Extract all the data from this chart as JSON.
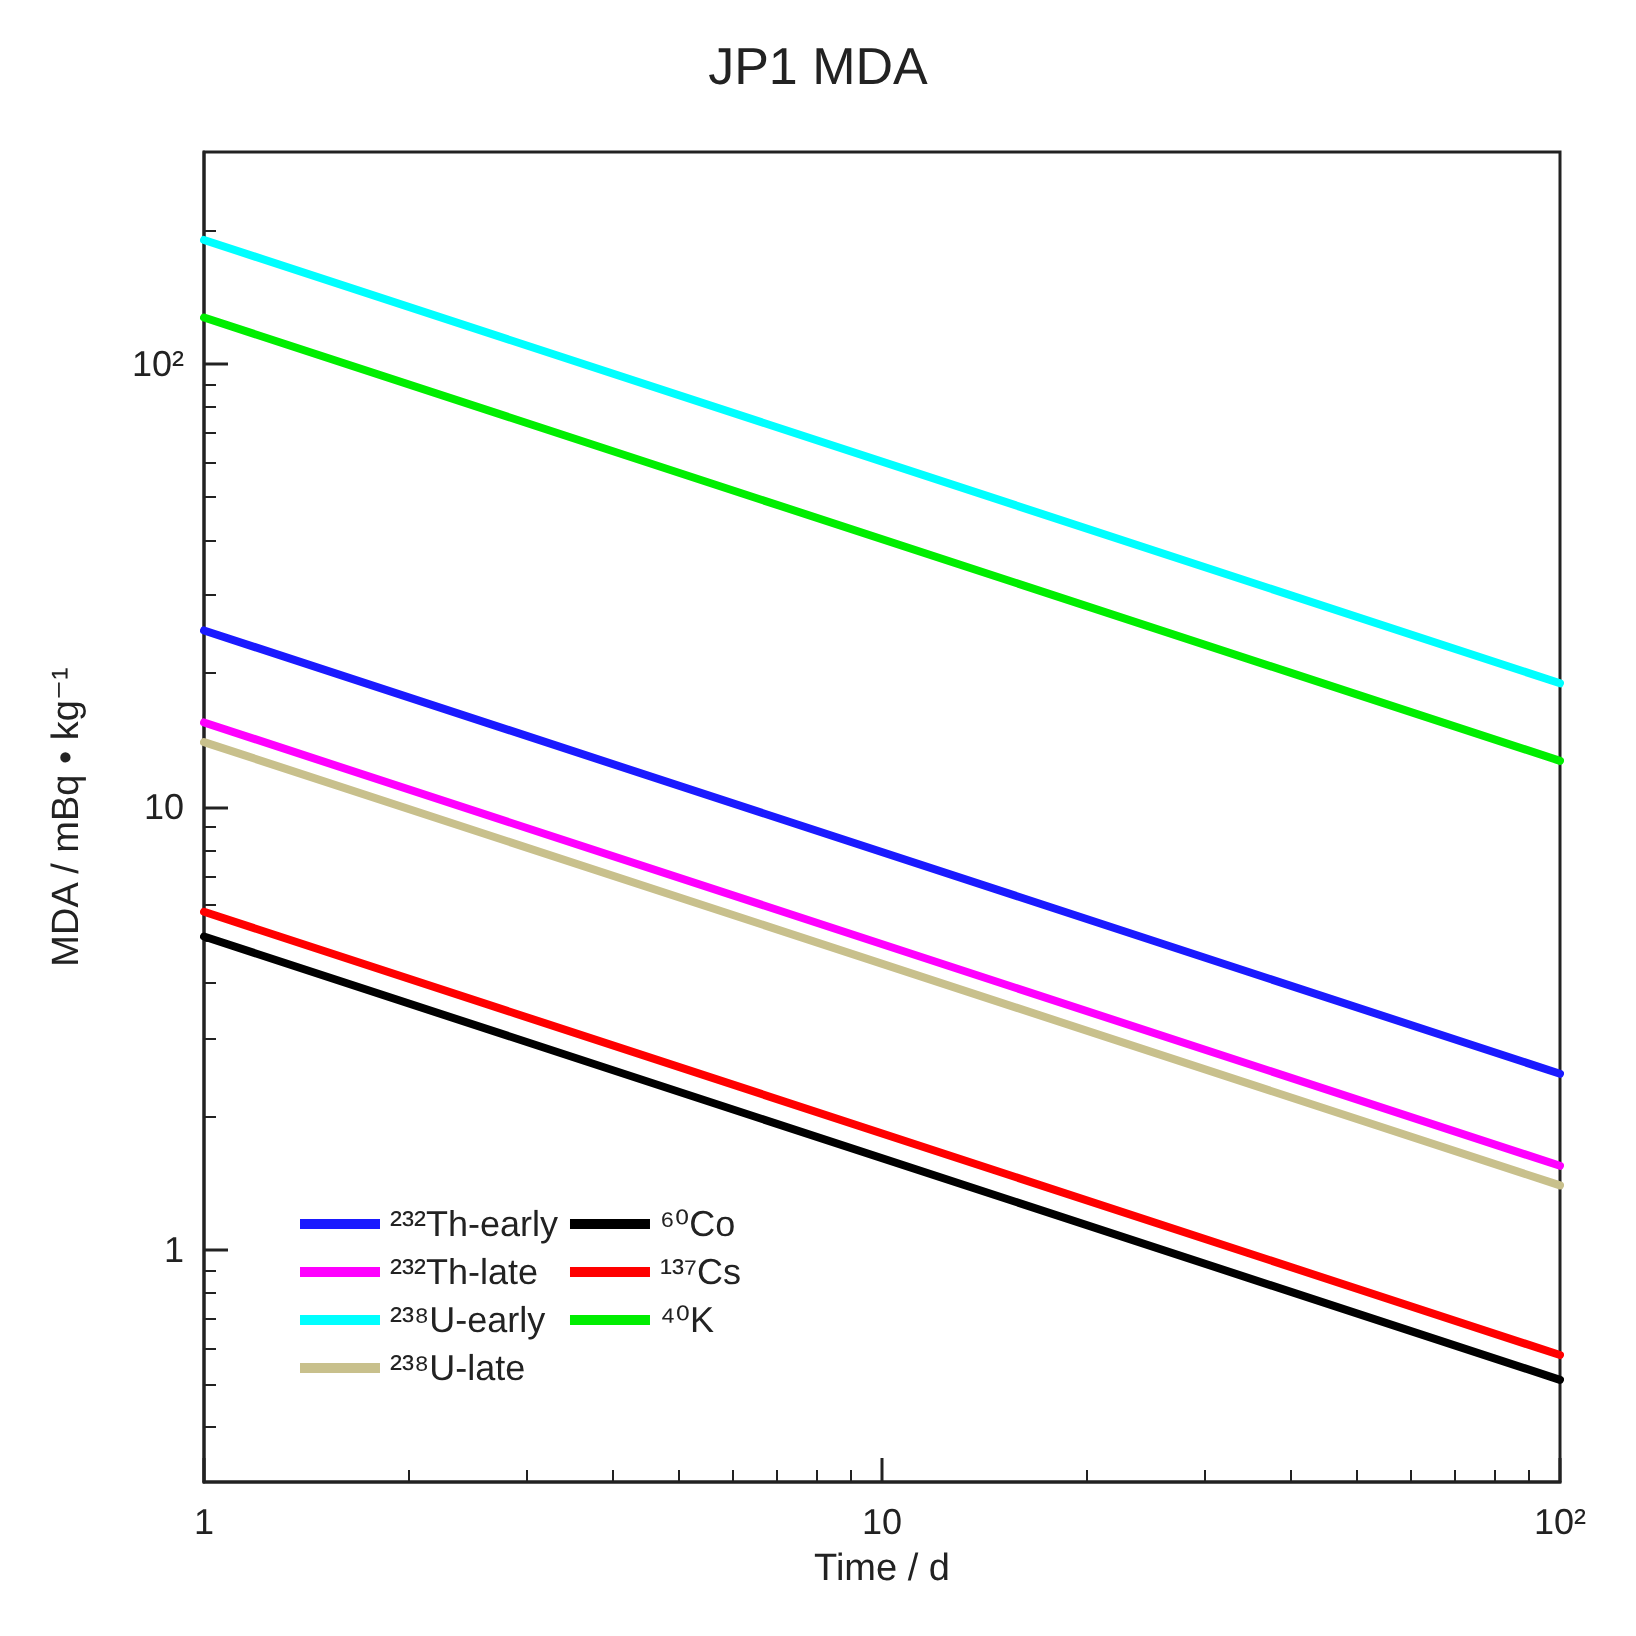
{
  "chart_data": {
    "type": "line",
    "title": "JP1 MDA",
    "xlabel": "Time / d",
    "ylabel": "MDA / mBq • kg⁻¹",
    "x": [
      1,
      100
    ],
    "series": [
      {
        "name": "²³²Th-early",
        "color": "#1a1aff",
        "values": [
          25,
          2.5
        ]
      },
      {
        "name": "²³²Th-late",
        "color": "#ff00ff",
        "values": [
          15.5,
          1.55
        ]
      },
      {
        "name": "²³⁸U-early",
        "color": "#00ffff",
        "values": [
          190,
          19
        ]
      },
      {
        "name": "²³⁸U-late",
        "color": "#c8c08c",
        "values": [
          14,
          1.4
        ]
      },
      {
        "name": "⁶⁰Co",
        "color": "#000000",
        "values": [
          5.1,
          0.51
        ]
      },
      {
        "name": "¹³⁷Cs",
        "color": "#ff0000",
        "values": [
          5.8,
          0.58
        ]
      },
      {
        "name": "⁴⁰K",
        "color": "#00ee00",
        "values": [
          127,
          12.7
        ]
      }
    ],
    "log": "xy",
    "xlim": [
      1,
      100
    ],
    "ylim": [
      0.3,
      300
    ],
    "xticks": [
      1,
      10,
      {
        "value": 100,
        "label": "10²"
      }
    ],
    "yticks": [
      1,
      10,
      {
        "value": 100,
        "label": "10²"
      }
    ],
    "grid": false,
    "legend": "bottom left",
    "marker": "none",
    "line_style": "solid"
  }
}
